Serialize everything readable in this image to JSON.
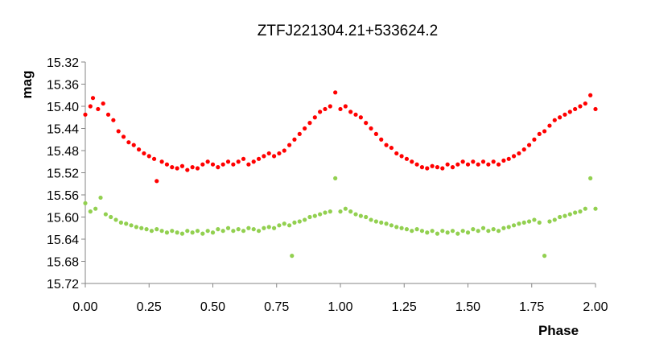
{
  "chart_data": {
    "type": "scatter",
    "title": "ZTFJ221304.21+533624.2",
    "xlabel": "Phase",
    "ylabel": "mag",
    "xlim": [
      0.0,
      2.0
    ],
    "ylim": [
      15.72,
      15.32
    ],
    "y_inverted": true,
    "x_ticks": [
      "0.00",
      "0.25",
      "0.50",
      "0.75",
      "1.00",
      "1.25",
      "1.50",
      "1.75",
      "2.00"
    ],
    "y_ticks": [
      "15.32",
      "15.36",
      "15.40",
      "15.44",
      "15.48",
      "15.52",
      "15.56",
      "15.60",
      "15.64",
      "15.68",
      "15.72"
    ],
    "grid": false,
    "legend": "none",
    "series": [
      {
        "color": "#ff0000",
        "points": [
          [
            0.0,
            15.415
          ],
          [
            0.02,
            15.4
          ],
          [
            0.03,
            15.385
          ],
          [
            0.05,
            15.405
          ],
          [
            0.07,
            15.395
          ],
          [
            0.09,
            15.415
          ],
          [
            0.11,
            15.425
          ],
          [
            0.13,
            15.445
          ],
          [
            0.15,
            15.455
          ],
          [
            0.17,
            15.465
          ],
          [
            0.19,
            15.47
          ],
          [
            0.21,
            15.478
          ],
          [
            0.23,
            15.485
          ],
          [
            0.25,
            15.49
          ],
          [
            0.27,
            15.495
          ],
          [
            0.28,
            15.535
          ],
          [
            0.3,
            15.5
          ],
          [
            0.32,
            15.505
          ],
          [
            0.34,
            15.51
          ],
          [
            0.36,
            15.512
          ],
          [
            0.38,
            15.508
          ],
          [
            0.4,
            15.515
          ],
          [
            0.42,
            15.51
          ],
          [
            0.44,
            15.512
          ],
          [
            0.46,
            15.505
          ],
          [
            0.48,
            15.5
          ],
          [
            0.5,
            15.505
          ],
          [
            0.52,
            15.51
          ],
          [
            0.54,
            15.505
          ],
          [
            0.56,
            15.5
          ],
          [
            0.58,
            15.505
          ],
          [
            0.6,
            15.5
          ],
          [
            0.62,
            15.495
          ],
          [
            0.64,
            15.505
          ],
          [
            0.66,
            15.5
          ],
          [
            0.68,
            15.495
          ],
          [
            0.7,
            15.49
          ],
          [
            0.72,
            15.485
          ],
          [
            0.74,
            15.49
          ],
          [
            0.76,
            15.485
          ],
          [
            0.78,
            15.48
          ],
          [
            0.8,
            15.47
          ],
          [
            0.82,
            15.46
          ],
          [
            0.84,
            15.45
          ],
          [
            0.86,
            15.44
          ],
          [
            0.88,
            15.43
          ],
          [
            0.9,
            15.42
          ],
          [
            0.92,
            15.41
          ],
          [
            0.94,
            15.405
          ],
          [
            0.96,
            15.4
          ],
          [
            0.98,
            15.375
          ],
          [
            1.0,
            15.405
          ],
          [
            1.02,
            15.4
          ],
          [
            1.04,
            15.41
          ],
          [
            1.06,
            15.415
          ],
          [
            1.08,
            15.42
          ],
          [
            1.1,
            15.43
          ],
          [
            1.12,
            15.44
          ],
          [
            1.14,
            15.45
          ],
          [
            1.16,
            15.46
          ],
          [
            1.18,
            15.47
          ],
          [
            1.2,
            15.475
          ],
          [
            1.22,
            15.485
          ],
          [
            1.24,
            15.49
          ],
          [
            1.26,
            15.495
          ],
          [
            1.28,
            15.5
          ],
          [
            1.3,
            15.505
          ],
          [
            1.32,
            15.51
          ],
          [
            1.34,
            15.512
          ],
          [
            1.36,
            15.508
          ],
          [
            1.38,
            15.51
          ],
          [
            1.4,
            15.512
          ],
          [
            1.42,
            15.505
          ],
          [
            1.44,
            15.51
          ],
          [
            1.46,
            15.505
          ],
          [
            1.48,
            15.5
          ],
          [
            1.5,
            15.505
          ],
          [
            1.52,
            15.5
          ],
          [
            1.54,
            15.505
          ],
          [
            1.56,
            15.5
          ],
          [
            1.58,
            15.505
          ],
          [
            1.6,
            15.5
          ],
          [
            1.62,
            15.505
          ],
          [
            1.64,
            15.498
          ],
          [
            1.66,
            15.495
          ],
          [
            1.68,
            15.49
          ],
          [
            1.7,
            15.485
          ],
          [
            1.72,
            15.478
          ],
          [
            1.74,
            15.47
          ],
          [
            1.76,
            15.46
          ],
          [
            1.78,
            15.45
          ],
          [
            1.8,
            15.445
          ],
          [
            1.82,
            15.435
          ],
          [
            1.84,
            15.425
          ],
          [
            1.86,
            15.42
          ],
          [
            1.88,
            15.415
          ],
          [
            1.9,
            15.41
          ],
          [
            1.92,
            15.405
          ],
          [
            1.94,
            15.4
          ],
          [
            1.96,
            15.395
          ],
          [
            1.98,
            15.38
          ],
          [
            2.0,
            15.405
          ]
        ]
      },
      {
        "color": "#92d050",
        "points": [
          [
            0.0,
            15.575
          ],
          [
            0.02,
            15.59
          ],
          [
            0.04,
            15.585
          ],
          [
            0.06,
            15.565
          ],
          [
            0.08,
            15.595
          ],
          [
            0.1,
            15.6
          ],
          [
            0.12,
            15.605
          ],
          [
            0.14,
            15.61
          ],
          [
            0.16,
            15.612
          ],
          [
            0.18,
            15.615
          ],
          [
            0.2,
            15.618
          ],
          [
            0.22,
            15.62
          ],
          [
            0.24,
            15.622
          ],
          [
            0.26,
            15.625
          ],
          [
            0.28,
            15.622
          ],
          [
            0.3,
            15.625
          ],
          [
            0.32,
            15.628
          ],
          [
            0.34,
            15.625
          ],
          [
            0.36,
            15.628
          ],
          [
            0.38,
            15.63
          ],
          [
            0.4,
            15.625
          ],
          [
            0.42,
            15.628
          ],
          [
            0.44,
            15.625
          ],
          [
            0.46,
            15.63
          ],
          [
            0.48,
            15.625
          ],
          [
            0.5,
            15.628
          ],
          [
            0.52,
            15.622
          ],
          [
            0.54,
            15.625
          ],
          [
            0.56,
            15.62
          ],
          [
            0.58,
            15.625
          ],
          [
            0.6,
            15.622
          ],
          [
            0.62,
            15.625
          ],
          [
            0.64,
            15.62
          ],
          [
            0.66,
            15.622
          ],
          [
            0.68,
            15.625
          ],
          [
            0.7,
            15.62
          ],
          [
            0.72,
            15.618
          ],
          [
            0.74,
            15.62
          ],
          [
            0.76,
            15.615
          ],
          [
            0.78,
            15.612
          ],
          [
            0.8,
            15.615
          ],
          [
            0.81,
            15.67
          ],
          [
            0.82,
            15.61
          ],
          [
            0.84,
            15.608
          ],
          [
            0.86,
            15.605
          ],
          [
            0.88,
            15.6
          ],
          [
            0.9,
            15.598
          ],
          [
            0.92,
            15.595
          ],
          [
            0.94,
            15.592
          ],
          [
            0.96,
            15.59
          ],
          [
            0.98,
            15.53
          ],
          [
            1.0,
            15.59
          ],
          [
            1.02,
            15.585
          ],
          [
            1.04,
            15.59
          ],
          [
            1.06,
            15.595
          ],
          [
            1.08,
            15.598
          ],
          [
            1.1,
            15.6
          ],
          [
            1.12,
            15.605
          ],
          [
            1.14,
            15.608
          ],
          [
            1.16,
            15.61
          ],
          [
            1.18,
            15.612
          ],
          [
            1.2,
            15.615
          ],
          [
            1.22,
            15.618
          ],
          [
            1.24,
            15.62
          ],
          [
            1.26,
            15.622
          ],
          [
            1.28,
            15.625
          ],
          [
            1.3,
            15.622
          ],
          [
            1.32,
            15.625
          ],
          [
            1.34,
            15.628
          ],
          [
            1.36,
            15.625
          ],
          [
            1.38,
            15.63
          ],
          [
            1.4,
            15.625
          ],
          [
            1.42,
            15.628
          ],
          [
            1.44,
            15.625
          ],
          [
            1.46,
            15.63
          ],
          [
            1.48,
            15.625
          ],
          [
            1.5,
            15.628
          ],
          [
            1.52,
            15.622
          ],
          [
            1.54,
            15.625
          ],
          [
            1.56,
            15.62
          ],
          [
            1.58,
            15.625
          ],
          [
            1.6,
            15.622
          ],
          [
            1.62,
            15.625
          ],
          [
            1.64,
            15.62
          ],
          [
            1.66,
            15.618
          ],
          [
            1.68,
            15.615
          ],
          [
            1.7,
            15.612
          ],
          [
            1.72,
            15.61
          ],
          [
            1.74,
            15.608
          ],
          [
            1.76,
            15.605
          ],
          [
            1.78,
            15.61
          ],
          [
            1.8,
            15.67
          ],
          [
            1.82,
            15.608
          ],
          [
            1.84,
            15.605
          ],
          [
            1.86,
            15.6
          ],
          [
            1.88,
            15.598
          ],
          [
            1.9,
            15.595
          ],
          [
            1.92,
            15.592
          ],
          [
            1.94,
            15.59
          ],
          [
            1.96,
            15.585
          ],
          [
            1.98,
            15.53
          ],
          [
            2.0,
            15.585
          ]
        ]
      }
    ]
  }
}
